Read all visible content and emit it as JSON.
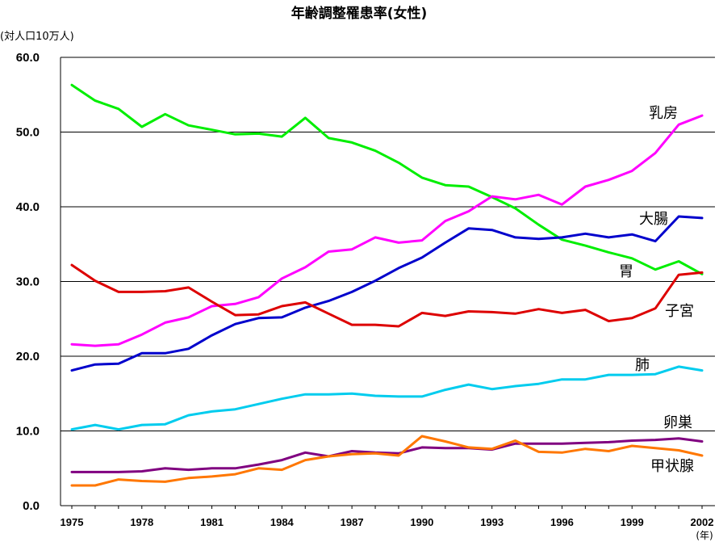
{
  "chart_data": {
    "type": "line",
    "title": "年齢調整罹患率(女性)",
    "ylabel": "(対人口10万人)",
    "xunit": "(年)",
    "ylim": [
      0,
      60
    ],
    "yticks": [
      "0.0",
      "10.0",
      "20.0",
      "30.0",
      "40.0",
      "50.0",
      "60.0"
    ],
    "xticks": [
      "1975",
      "1978",
      "1981",
      "1984",
      "1987",
      "1990",
      "1993",
      "1996",
      "1999",
      "2002"
    ],
    "grid": true,
    "x": [
      1975,
      1976,
      1977,
      1978,
      1979,
      1980,
      1981,
      1982,
      1983,
      1984,
      1985,
      1986,
      1987,
      1988,
      1989,
      1990,
      1991,
      1992,
      1993,
      1994,
      1995,
      1996,
      1997,
      1998,
      1999,
      2000,
      2001,
      2002
    ],
    "series": [
      {
        "name": "胃",
        "color": "#00ee00",
        "values": [
          56.3,
          54.2,
          53.1,
          50.7,
          52.4,
          50.9,
          50.3,
          49.7,
          49.8,
          49.4,
          51.9,
          49.2,
          48.6,
          47.5,
          45.9,
          43.9,
          42.9,
          42.7,
          41.3,
          39.8,
          37.6,
          35.6,
          34.8,
          33.9,
          33.1,
          31.6,
          32.7,
          31.0
        ]
      },
      {
        "name": "乳房",
        "color": "#ff00ff",
        "values": [
          21.6,
          21.4,
          21.6,
          22.9,
          24.5,
          25.2,
          26.7,
          27.0,
          27.9,
          30.4,
          31.9,
          34.0,
          34.3,
          35.9,
          35.2,
          35.5,
          38.1,
          39.4,
          41.4,
          41.0,
          41.6,
          40.3,
          42.7,
          43.6,
          44.8,
          47.2,
          51.0,
          52.2
        ]
      },
      {
        "name": "大腸",
        "color": "#0000cc",
        "values": [
          18.1,
          18.9,
          19.0,
          20.4,
          20.4,
          21.0,
          22.8,
          24.3,
          25.1,
          25.2,
          26.5,
          27.4,
          28.6,
          30.1,
          31.8,
          33.2,
          35.2,
          37.1,
          36.9,
          35.9,
          35.7,
          35.9,
          36.4,
          35.9,
          36.3,
          35.4,
          38.7,
          38.5
        ]
      },
      {
        "name": "子宮",
        "color": "#dd0000",
        "values": [
          32.2,
          30.1,
          28.6,
          28.6,
          28.7,
          29.2,
          27.3,
          25.5,
          25.6,
          26.7,
          27.2,
          25.7,
          24.2,
          24.2,
          24.0,
          25.8,
          25.4,
          26.0,
          25.9,
          25.7,
          26.3,
          25.8,
          26.2,
          24.7,
          25.1,
          26.4,
          30.9,
          31.2
        ]
      },
      {
        "name": "肺",
        "color": "#00ccee",
        "values": [
          10.2,
          10.8,
          10.2,
          10.8,
          10.9,
          12.1,
          12.6,
          12.9,
          13.6,
          14.3,
          14.9,
          14.9,
          15.0,
          14.7,
          14.6,
          14.6,
          15.5,
          16.2,
          15.6,
          16.0,
          16.3,
          16.9,
          16.9,
          17.5,
          17.5,
          17.6,
          18.6,
          18.1
        ]
      },
      {
        "name": "卵巣",
        "color": "#800080",
        "values": [
          4.5,
          4.5,
          4.5,
          4.6,
          5.0,
          4.8,
          5.0,
          5.0,
          5.5,
          6.1,
          7.1,
          6.6,
          7.3,
          7.1,
          7.0,
          7.8,
          7.7,
          7.7,
          7.5,
          8.3,
          8.3,
          8.3,
          8.4,
          8.5,
          8.7,
          8.8,
          9.0,
          8.6
        ]
      },
      {
        "name": "甲状腺",
        "color": "#ff7700",
        "values": [
          2.7,
          2.7,
          3.5,
          3.3,
          3.2,
          3.7,
          3.9,
          4.2,
          5.0,
          4.8,
          6.1,
          6.6,
          6.9,
          7.0,
          6.7,
          9.3,
          8.6,
          7.8,
          7.6,
          8.7,
          7.2,
          7.1,
          7.6,
          7.3,
          8.0,
          7.7,
          7.4,
          6.7
        ]
      }
    ]
  }
}
